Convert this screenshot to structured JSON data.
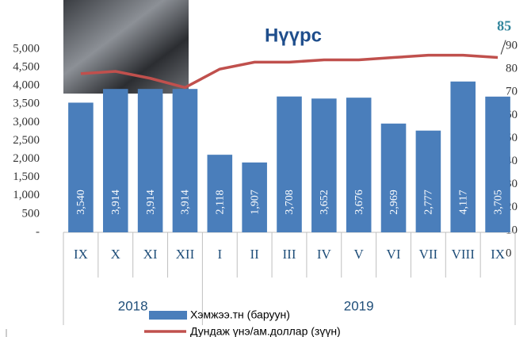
{
  "chart_data": {
    "type": "bar",
    "title": "Нүүрс",
    "categories": [
      "IX",
      "X",
      "XI",
      "XII",
      "I",
      "II",
      "III",
      "IV",
      "V",
      "VI",
      "VII",
      "VIII",
      "IX"
    ],
    "groups": [
      "2018",
      "2019"
    ],
    "series": [
      {
        "name": "Хэмжээ.тн (баруун)",
        "color": "#4a7ebb",
        "type": "bar",
        "values": [
          3540,
          3914,
          3914,
          3914,
          2118,
          1907,
          3708,
          3652,
          3676,
          2969,
          2777,
          4117,
          3705
        ],
        "value_labels": [
          "3,540",
          "3,914",
          "3,914",
          "3,914",
          "2,118",
          "1,907",
          "3,708",
          "3,652",
          "3,676",
          "2,969",
          "2,777",
          "4,117",
          "3,705"
        ]
      },
      {
        "name": "Дундаж үнэ/ам.доллар (зүүн)",
        "color": "#c0504d",
        "type": "line",
        "axis": "y2",
        "values": [
          78,
          79,
          76,
          72,
          80,
          83,
          83,
          84,
          84,
          85,
          86,
          86,
          85
        ],
        "end_label": 85
      }
    ],
    "ylim": [
      0,
      5000
    ],
    "yticks": [
      {
        "value": 0,
        "label": "-"
      },
      500,
      {
        "value": 1000,
        "label": "1,000"
      },
      {
        "value": 1500,
        "label": "1,500"
      },
      {
        "value": 2000,
        "label": "2,000"
      },
      {
        "value": 2500,
        "label": "2,500"
      },
      {
        "value": 3000,
        "label": "3,000"
      },
      {
        "value": 3500,
        "label": "3,500"
      },
      {
        "value": 4000,
        "label": "4,000"
      },
      {
        "value": 4500,
        "label": "4,500"
      },
      {
        "value": 5000,
        "label": "5,000"
      }
    ],
    "y2lim": [
      0,
      90
    ],
    "y2ticks": [
      0,
      10,
      20,
      30,
      40,
      50,
      60,
      70,
      80,
      90
    ]
  }
}
